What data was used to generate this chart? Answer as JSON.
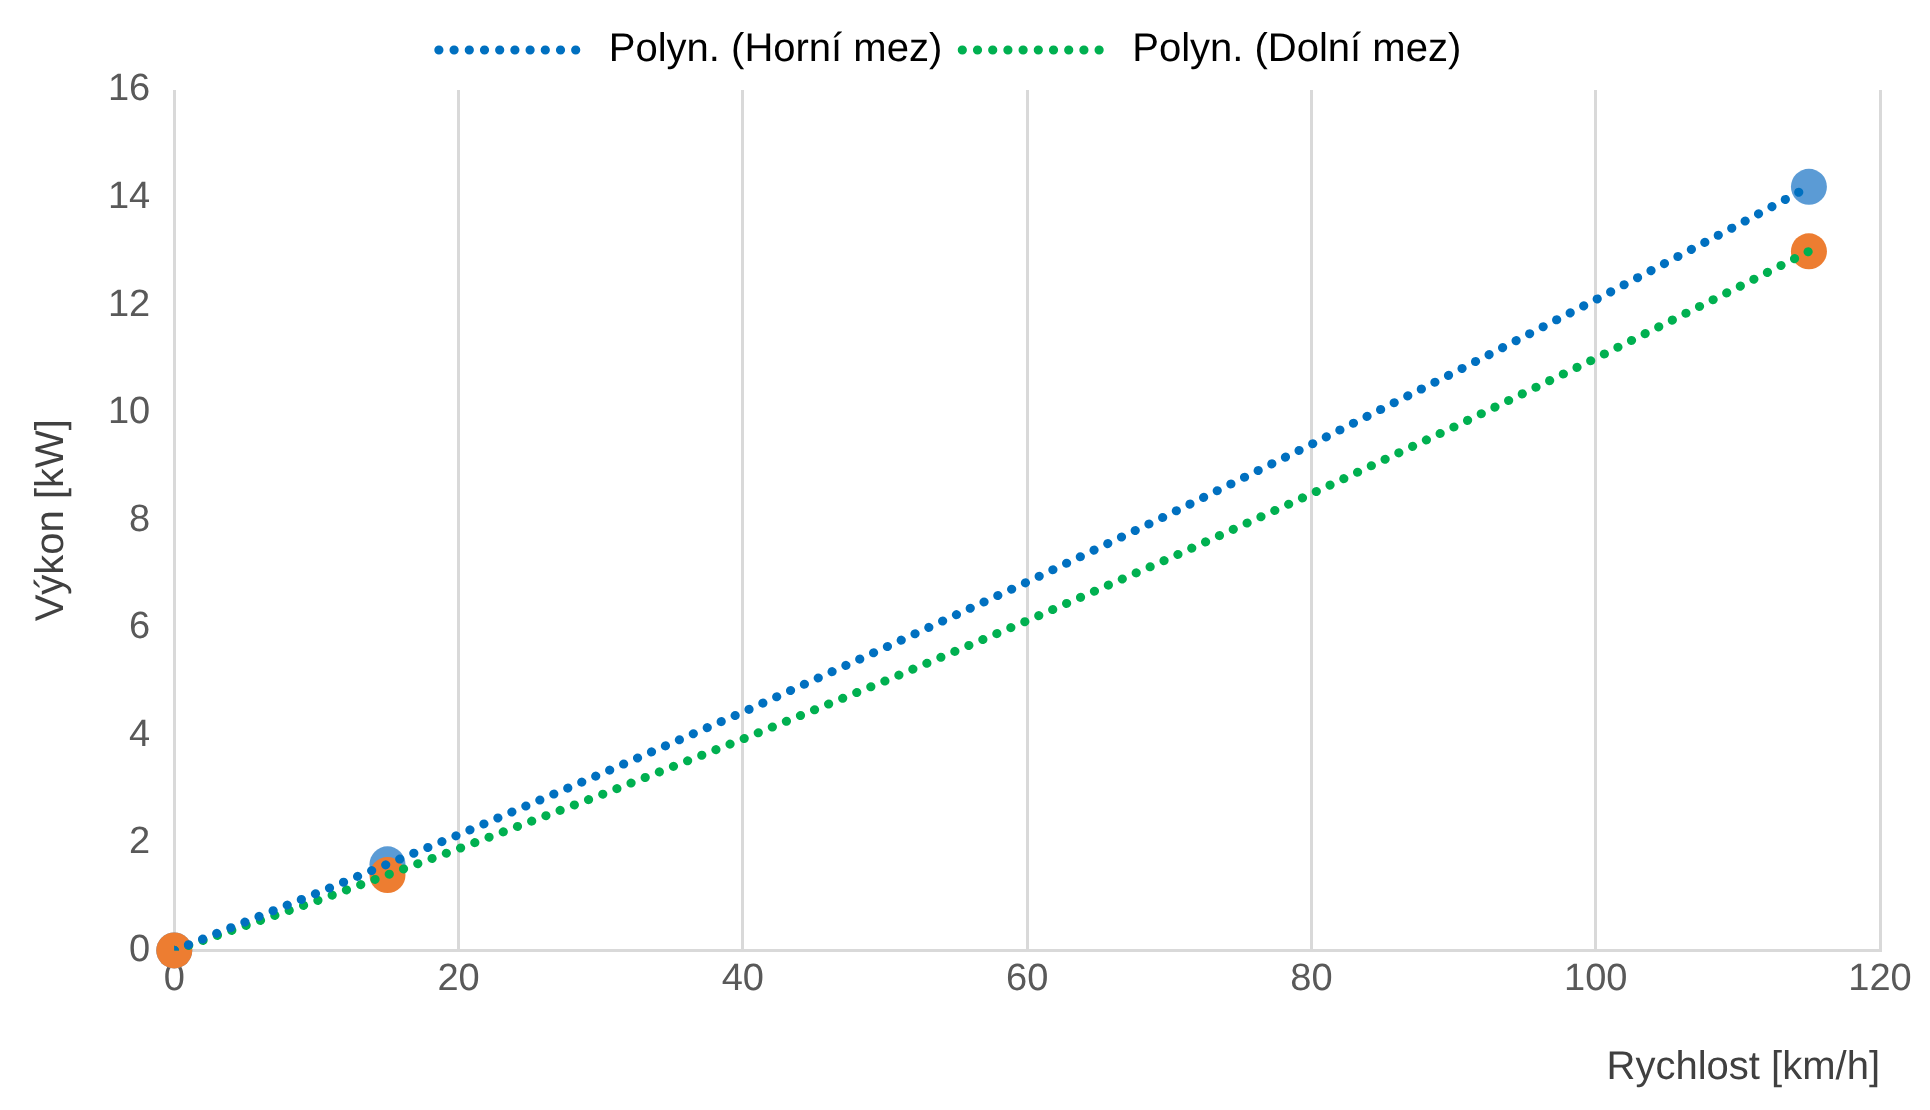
{
  "chart_data": {
    "type": "scatter",
    "xlabel": "Rychlost [km/h]",
    "ylabel": "Výkon [kW]",
    "xlim": [
      0,
      120
    ],
    "xticks": [
      0,
      20,
      40,
      60,
      80,
      100,
      120
    ],
    "ylim": [
      0,
      16
    ],
    "yticks": [
      0,
      2,
      4,
      6,
      8,
      10,
      12,
      14,
      16
    ],
    "grid": "x",
    "legend": "top",
    "series": [
      {
        "type": "line",
        "name": "Polyn. (Horní mez)",
        "color": "#0070c0",
        "line_style": "dotted",
        "marker": "none",
        "x": [
          0,
          10,
          20,
          30,
          40,
          50,
          60,
          70,
          80,
          90,
          100,
          110,
          115
        ],
        "values": [
          0,
          1.06,
          2.15,
          3.28,
          4.43,
          5.63,
          6.85,
          8.11,
          9.41,
          10.74,
          12.1,
          13.49,
          14.2
        ]
      },
      {
        "type": "line",
        "name": "Polyn. (Dolní mez)",
        "color": "#00b050",
        "line_style": "dotted",
        "marker": "none",
        "x": [
          0,
          10,
          20,
          30,
          40,
          50,
          60,
          70,
          80,
          90,
          100,
          110,
          115
        ],
        "values": [
          0,
          0.92,
          1.89,
          2.89,
          3.93,
          5.01,
          6.13,
          7.29,
          8.49,
          9.73,
          11.01,
          12.33,
          13.0
        ]
      },
      {
        "type": "scatter",
        "color": "#5b9bd5",
        "marker": "circle",
        "x": [
          0,
          15,
          115
        ],
        "values": [
          0,
          1.6,
          14.2
        ]
      },
      {
        "type": "scatter",
        "color": "#ed7d31",
        "marker": "circle",
        "x": [
          0,
          15,
          115
        ],
        "values": [
          0,
          1.4,
          13.0
        ]
      }
    ]
  }
}
